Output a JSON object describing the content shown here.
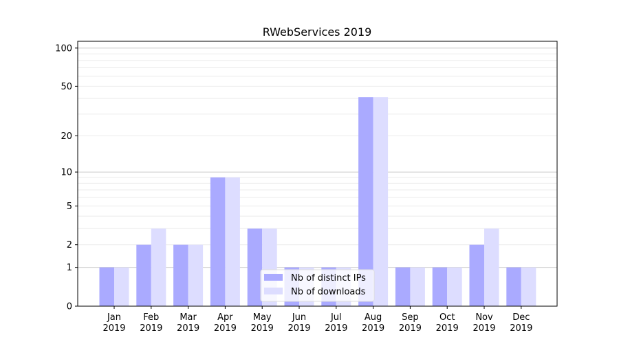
{
  "chart_data": {
    "type": "bar",
    "title": "RWebServices 2019",
    "xlabel": "",
    "ylabel": "",
    "yscale": "log(1+y)",
    "ylim": [
      0,
      113
    ],
    "yticks": [
      0,
      1,
      2,
      5,
      10,
      20,
      50,
      100
    ],
    "grid": true,
    "legend_position": "bottom-center",
    "categories": [
      "Jan\n2019",
      "Feb\n2019",
      "Mar\n2019",
      "Apr\n2019",
      "May\n2019",
      "Jun\n2019",
      "Jul\n2019",
      "Aug\n2019",
      "Sep\n2019",
      "Oct\n2019",
      "Nov\n2019",
      "Dec\n2019"
    ],
    "series": [
      {
        "name": "Nb of distinct IPs",
        "color": "#aaaaff",
        "values": [
          1,
          2,
          2,
          9,
          3,
          1,
          1,
          41,
          1,
          1,
          2,
          1
        ]
      },
      {
        "name": "Nb of downloads",
        "color": "#ddddff",
        "values": [
          1,
          3,
          2,
          9,
          3,
          1,
          1,
          41,
          1,
          1,
          3,
          1
        ]
      }
    ]
  }
}
